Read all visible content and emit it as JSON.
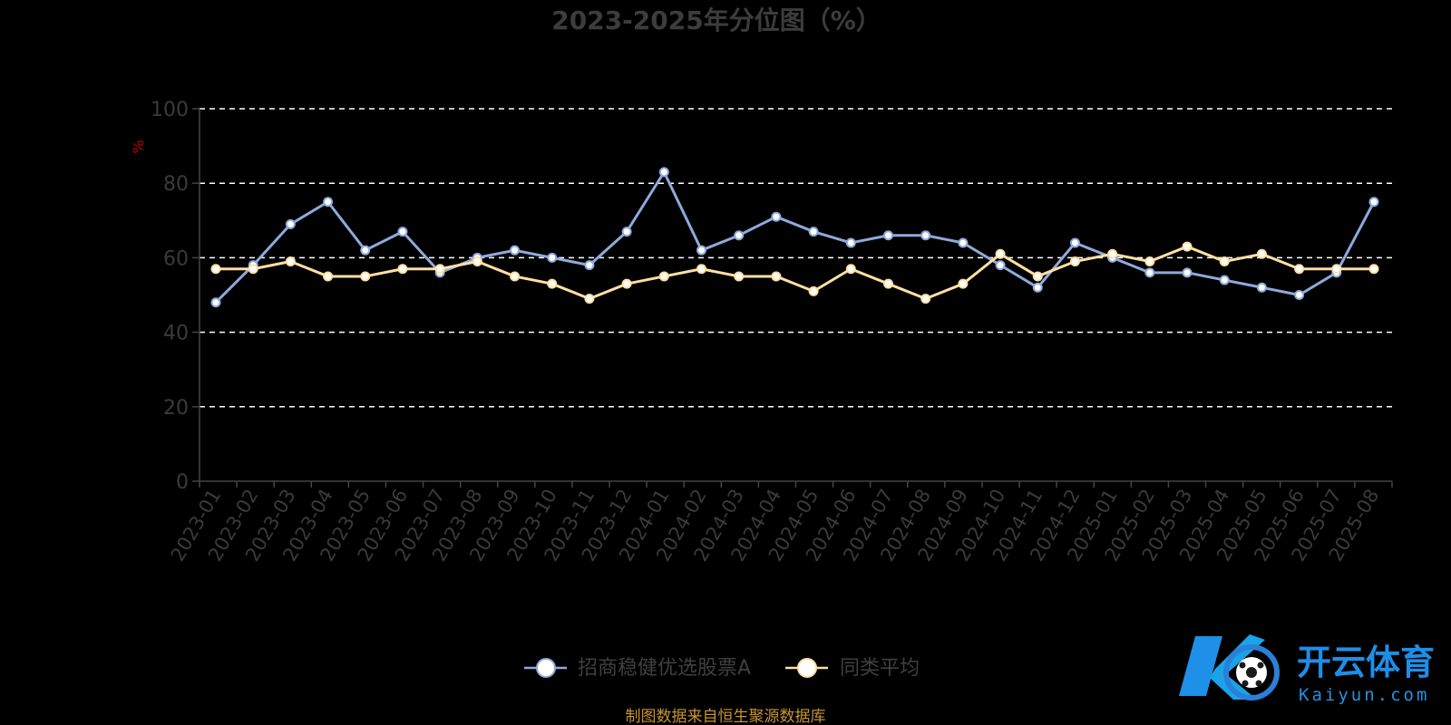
{
  "chart_data": {
    "type": "line",
    "title": "2023-2025年分位图（%）",
    "ylabel": "%",
    "ylim": [
      0,
      100
    ],
    "yticks": [
      0,
      20,
      40,
      60,
      80,
      100
    ],
    "grid": true,
    "legend_position": "bottom-center",
    "categories": [
      "2023-01",
      "2023-02",
      "2023-03",
      "2023-04",
      "2023-05",
      "2023-06",
      "2023-07",
      "2023-08",
      "2023-09",
      "2023-10",
      "2023-11",
      "2023-12",
      "2024-01",
      "2024-02",
      "2024-03",
      "2024-04",
      "2024-05",
      "2024-06",
      "2024-07",
      "2024-08",
      "2024-09",
      "2024-10",
      "2024-11",
      "2024-12",
      "2025-01",
      "2025-02",
      "2025-03",
      "2025-04",
      "2025-05",
      "2025-06",
      "2025-07",
      "2025-08"
    ],
    "series": [
      {
        "name": "招商稳健优选股票A",
        "color": "#8eaadb",
        "values": [
          48,
          58,
          69,
          75,
          62,
          67,
          56,
          60,
          62,
          60,
          58,
          67,
          83,
          62,
          66,
          71,
          67,
          64,
          66,
          66,
          64,
          58,
          52,
          64,
          60,
          56,
          56,
          54,
          52,
          50,
          56,
          75
        ]
      },
      {
        "name": "同类平均",
        "color": "#ffe0a3",
        "values": [
          57,
          57,
          59,
          55,
          55,
          57,
          57,
          59,
          55,
          53,
          49,
          53,
          55,
          57,
          55,
          55,
          51,
          57,
          53,
          49,
          53,
          61,
          55,
          59,
          61,
          59,
          63,
          59,
          61,
          57,
          57,
          57
        ]
      }
    ]
  },
  "source_note": "制图数据来自恒生聚源数据库",
  "watermark": {
    "cn": "开云体育",
    "en": "Kaiyun.com"
  }
}
